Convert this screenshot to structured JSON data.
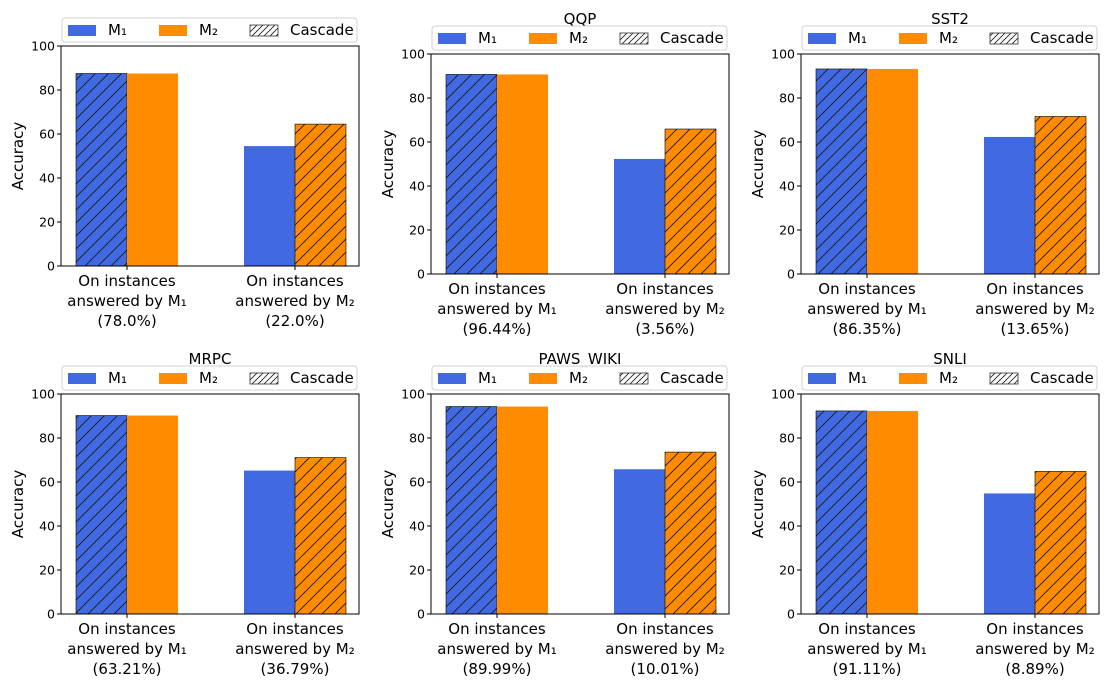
{
  "legend": {
    "items": [
      {
        "label": "M₁",
        "color": "#4169e1",
        "hatch": false
      },
      {
        "label": "M₂",
        "color": "#ff8c00",
        "hatch": false
      },
      {
        "label": "Cascade",
        "color": "#ffffff",
        "hatch": true
      }
    ]
  },
  "colors": {
    "m1": "#4169e1",
    "m2": "#ff8c00"
  },
  "chart_data": [
    {
      "type": "bar",
      "title": "",
      "ylabel": "Accuracy",
      "ylim": [
        0,
        100
      ],
      "yticks": [
        "0",
        "20",
        "40",
        "60",
        "80",
        "100"
      ],
      "categories": [
        [
          "On instances",
          "answered by M₁",
          "(78.0%)"
        ],
        [
          "On instances",
          "answered by M₂",
          "(22.0%)"
        ]
      ],
      "series": [
        {
          "name": "M₁",
          "values": [
            87.5,
            54.5
          ]
        },
        {
          "name": "M₂",
          "values": [
            87.5,
            64.5
          ]
        }
      ],
      "cascade_source": [
        "M₁",
        "M₂"
      ],
      "grid": false,
      "legend_position": "top"
    },
    {
      "type": "bar",
      "title": "QQP",
      "ylabel": "Accuracy",
      "ylim": [
        0,
        100
      ],
      "yticks": [
        "0",
        "20",
        "40",
        "60",
        "80",
        "100"
      ],
      "categories": [
        [
          "On instances",
          "answered by M₁",
          "(96.44%)"
        ],
        [
          "On instances",
          "answered by M₂",
          "(3.56%)"
        ]
      ],
      "series": [
        {
          "name": "M₁",
          "values": [
            90.7,
            52.3
          ]
        },
        {
          "name": "M₂",
          "values": [
            90.7,
            65.9
          ]
        }
      ],
      "cascade_source": [
        "M₁",
        "M₂"
      ],
      "grid": false,
      "legend_position": "top"
    },
    {
      "type": "bar",
      "title": "SST2",
      "ylabel": "Accuracy",
      "ylim": [
        0,
        100
      ],
      "yticks": [
        "0",
        "20",
        "40",
        "60",
        "80",
        "100"
      ],
      "categories": [
        [
          "On instances",
          "answered by M₁",
          "(86.35%)"
        ],
        [
          "On instances",
          "answered by M₂",
          "(13.65%)"
        ]
      ],
      "series": [
        {
          "name": "M₁",
          "values": [
            93.2,
            62.3
          ]
        },
        {
          "name": "M₂",
          "values": [
            93.2,
            71.6
          ]
        }
      ],
      "cascade_source": [
        "M₁",
        "M₂"
      ],
      "grid": false,
      "legend_position": "top"
    },
    {
      "type": "bar",
      "title": "MRPC",
      "ylabel": "Accuracy",
      "ylim": [
        0,
        100
      ],
      "yticks": [
        "0",
        "20",
        "40",
        "60",
        "80",
        "100"
      ],
      "categories": [
        [
          "On instances",
          "answered by M₁",
          "(63.21%)"
        ],
        [
          "On instances",
          "answered by M₂",
          "(36.79%)"
        ]
      ],
      "series": [
        {
          "name": "M₁",
          "values": [
            90.2,
            65.2
          ]
        },
        {
          "name": "M₂",
          "values": [
            90.2,
            71.1
          ]
        }
      ],
      "cascade_source": [
        "M₁",
        "M₂"
      ],
      "grid": false,
      "legend_position": "top"
    },
    {
      "type": "bar",
      "title": "PAWS_WIKI",
      "ylabel": "Accuracy",
      "ylim": [
        0,
        100
      ],
      "yticks": [
        "0",
        "20",
        "40",
        "60",
        "80",
        "100"
      ],
      "categories": [
        [
          "On instances",
          "answered by M₁",
          "(89.99%)"
        ],
        [
          "On instances",
          "answered by M₂",
          "(10.01%)"
        ]
      ],
      "series": [
        {
          "name": "M₁",
          "values": [
            94.3,
            65.8
          ]
        },
        {
          "name": "M₂",
          "values": [
            94.3,
            73.6
          ]
        }
      ],
      "cascade_source": [
        "M₁",
        "M₂"
      ],
      "grid": false,
      "legend_position": "top"
    },
    {
      "type": "bar",
      "title": "SNLI",
      "ylabel": "Accuracy",
      "ylim": [
        0,
        100
      ],
      "yticks": [
        "0",
        "20",
        "40",
        "60",
        "80",
        "100"
      ],
      "categories": [
        [
          "On instances",
          "answered by M₁",
          "(91.11%)"
        ],
        [
          "On instances",
          "answered by M₂",
          "(8.89%)"
        ]
      ],
      "series": [
        {
          "name": "M₁",
          "values": [
            92.3,
            54.8
          ]
        },
        {
          "name": "M₂",
          "values": [
            92.3,
            64.8
          ]
        }
      ],
      "cascade_source": [
        "M₁",
        "M₂"
      ],
      "grid": false,
      "legend_position": "top"
    }
  ]
}
